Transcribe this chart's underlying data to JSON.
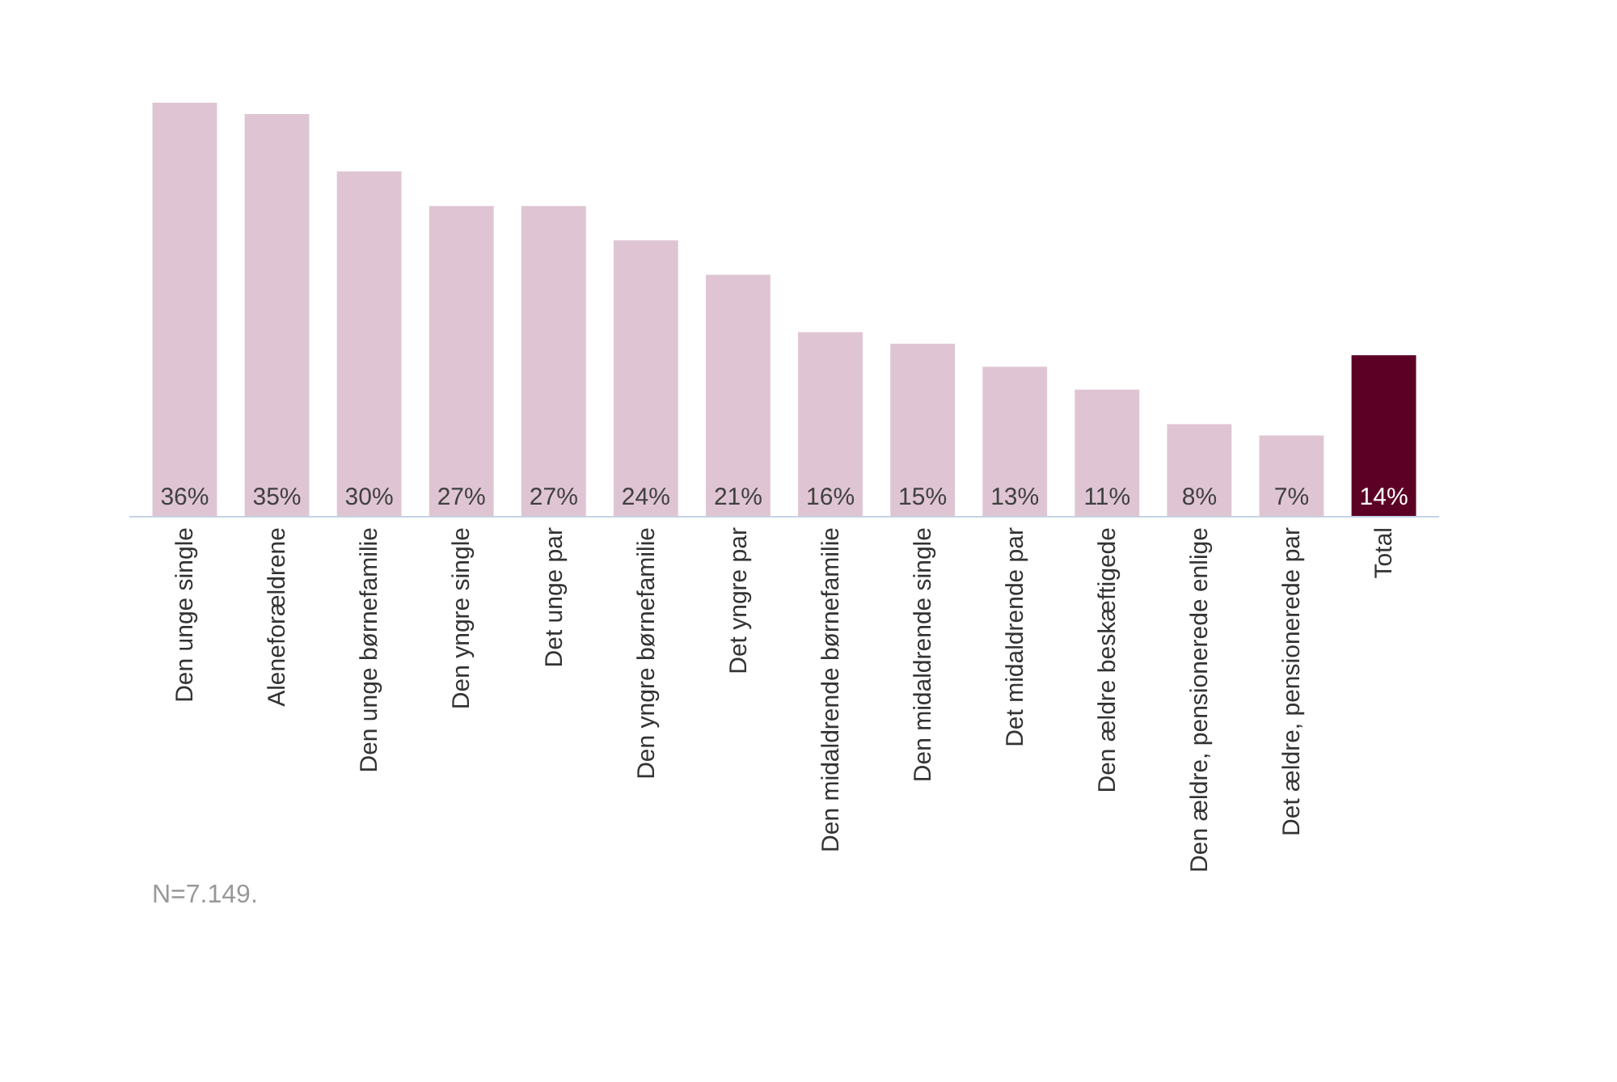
{
  "chart_data": {
    "type": "bar",
    "categories": [
      "Den unge single",
      "Aleneforældrene",
      "Den unge børnefamilie",
      "Den yngre single",
      "Det unge par",
      "Den yngre børnefamilie",
      "Det yngre par",
      "Den midaldrende børnefamilie",
      "Den midaldrende single",
      "Det midaldrende par",
      "Den ældre beskæftigede",
      "Den ældre, pensionerede enlige",
      "Det ældre, pensionerede par",
      "Total"
    ],
    "values": [
      36,
      35,
      30,
      27,
      27,
      24,
      21,
      16,
      15,
      13,
      11,
      8,
      7,
      14
    ],
    "colors": [
      "#dfc5d3",
      "#dfc5d3",
      "#dfc5d3",
      "#dfc5d3",
      "#dfc5d3",
      "#dfc5d3",
      "#dfc5d3",
      "#dfc5d3",
      "#dfc5d3",
      "#dfc5d3",
      "#dfc5d3",
      "#dfc5d3",
      "#dfc5d3",
      "#5c0026"
    ],
    "value_labels": [
      "36%",
      "35%",
      "30%",
      "27%",
      "27%",
      "24%",
      "21%",
      "16%",
      "15%",
      "13%",
      "11%",
      "8%",
      "7%",
      "14%"
    ],
    "annotations": [
      "N=7.149."
    ],
    "legend": false
  }
}
